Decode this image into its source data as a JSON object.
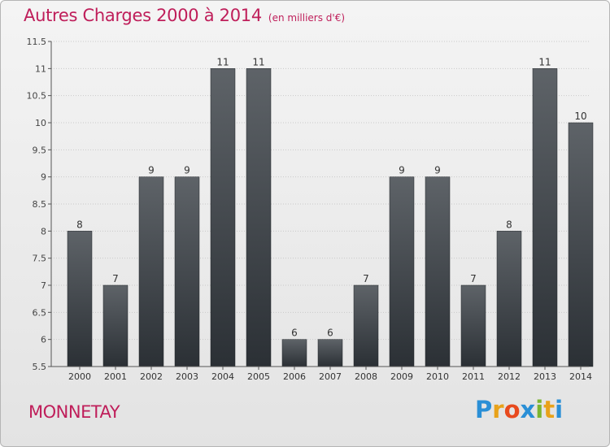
{
  "title": "Autres Charges 2000 à 2014",
  "subtitle": "(en milliers d'€)",
  "town": "MONNETAY",
  "brand": {
    "letters": [
      "P",
      "r",
      "o",
      "x",
      "i",
      "t",
      "i"
    ],
    "colors": [
      "#2a8fd6",
      "#e8a21a",
      "#e84a1e",
      "#2a8fd6",
      "#7cb530",
      "#e8a21a",
      "#2a8fd6"
    ]
  },
  "colors": {
    "accent": "#bf1e5a",
    "bar_top": "#5e6368",
    "bar_bottom": "#2b3035"
  },
  "chart_data": {
    "type": "bar",
    "categories": [
      "2000",
      "2001",
      "2002",
      "2003",
      "2004",
      "2005",
      "2006",
      "2007",
      "2008",
      "2009",
      "2010",
      "2011",
      "2012",
      "2013",
      "2014"
    ],
    "values": [
      8,
      7,
      9,
      9,
      11,
      11,
      6,
      6,
      7,
      9,
      9,
      7,
      8,
      11,
      10
    ],
    "data_labels": [
      "8",
      "7",
      "9",
      "9",
      "11",
      "11",
      "6",
      "6",
      "7",
      "9",
      "9",
      "7",
      "8",
      "11",
      "10"
    ],
    "yticks": [
      "5.5",
      "6",
      "6.5",
      "7",
      "7.5",
      "8",
      "8.5",
      "9",
      "9.5",
      "10",
      "10.5",
      "11",
      "11.5"
    ],
    "ylim": [
      5.5,
      11.5
    ],
    "grid": "horizontal-dotted",
    "legend": "none"
  }
}
